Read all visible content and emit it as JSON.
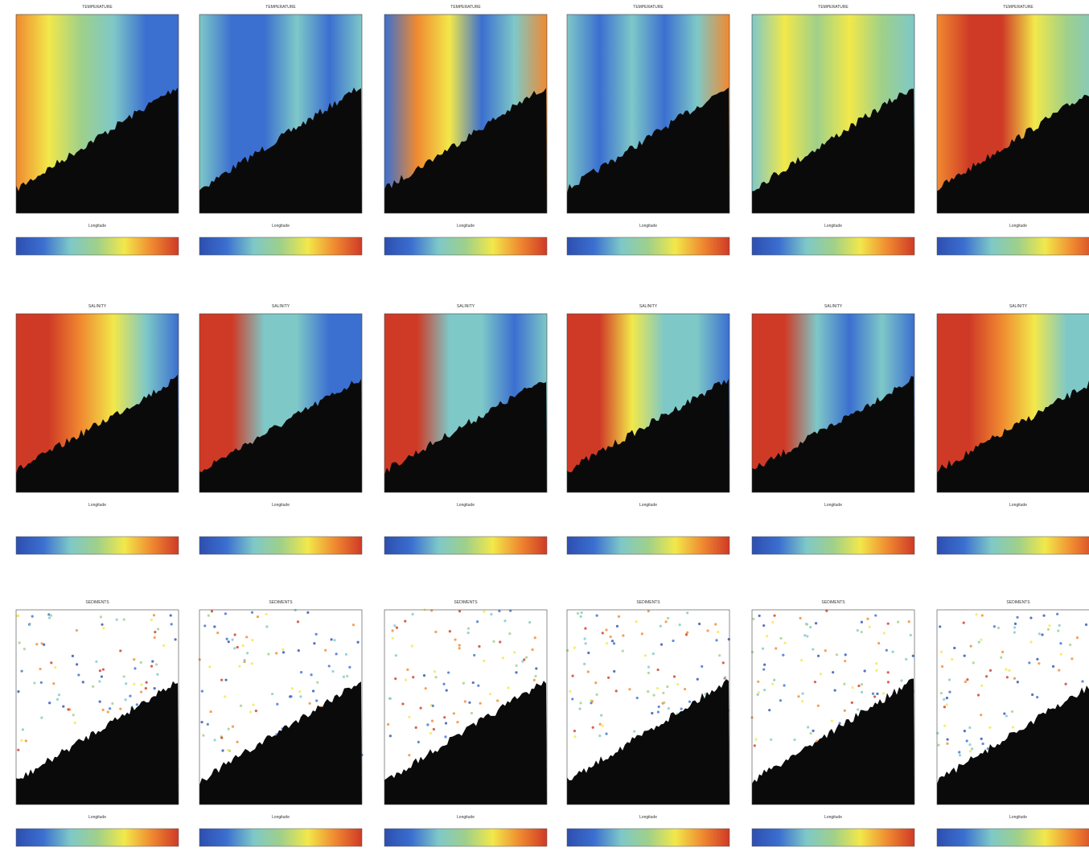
{
  "rows": [
    {
      "variable": "TEMPERATURE"
    },
    {
      "variable": "SALINITY"
    },
    {
      "variable": "SEDIMENTS"
    }
  ],
  "x_label": "Longitude"
}
